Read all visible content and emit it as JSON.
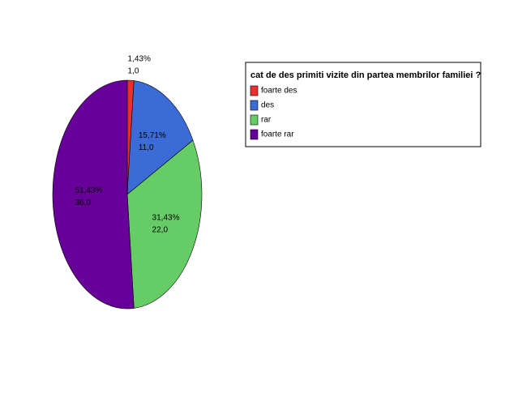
{
  "chart_data": {
    "type": "pie",
    "legend_title": "cat de des primiti vizite din partea membrilor familiei ?",
    "categories": [
      "foarte des",
      "des",
      "rar",
      "foarte rar"
    ],
    "values": [
      1.43,
      15.71,
      31.43,
      51.43
    ],
    "value_labels": [
      "1,43%",
      "15,71%",
      "31,43%",
      "51,43%"
    ],
    "counts": [
      1,
      11,
      22,
      36
    ],
    "count_labels": [
      "1,0",
      "11,0",
      "22,0",
      "36,0"
    ],
    "colors": [
      "#e8302f",
      "#3a6bd6",
      "#66cc66",
      "#660099"
    ],
    "legend": "right"
  }
}
